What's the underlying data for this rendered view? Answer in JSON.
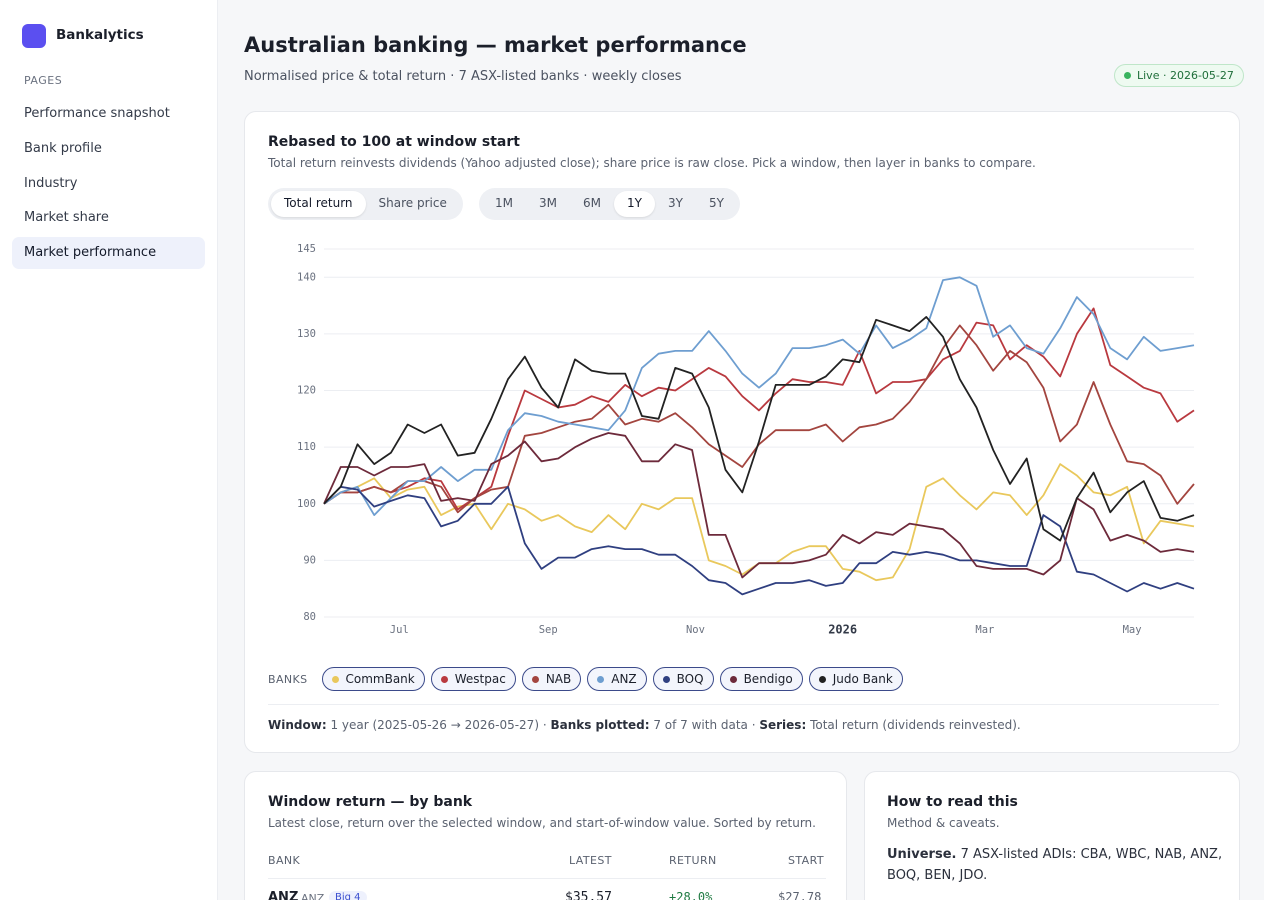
{
  "sidebar": {
    "brand": "Bankalytics",
    "section": "PAGES",
    "items": [
      "Performance snapshot",
      "Bank profile",
      "Industry",
      "Market share",
      "Market performance"
    ]
  },
  "header": {
    "title": "Australian banking — market performance",
    "subtitle": "Normalised price & total return · 7 ASX-listed banks · weekly closes",
    "badge": "Live · 2026-05-27"
  },
  "chart_card": {
    "title": "Rebased to 100 at window start",
    "subtitle": "Total return reinvests dividends (Yahoo adjusted close); share price is raw close. Pick a window, then layer in banks to compare.",
    "series_toggle": [
      "Total return",
      "Share price"
    ],
    "windows": [
      "1M",
      "3M",
      "6M",
      "1Y",
      "3Y",
      "5Y"
    ],
    "legend_label": "BANKS",
    "footer": [
      {
        "label": "Window:",
        "text": " 1 year (2025-05-26 → 2026-05-27) · "
      },
      {
        "label": "Banks plotted:",
        "text": " 7 of 7 with data · "
      },
      {
        "label": "Series:",
        "text": " Total return (dividends reinvested)."
      }
    ]
  },
  "chart_data": {
    "type": "line",
    "xlim": [
      0,
      52
    ],
    "xticks": [
      {
        "value": 4.5,
        "label": "Jul"
      },
      {
        "value": 13.4,
        "label": "Sep"
      },
      {
        "value": 22.2,
        "label": "Nov"
      },
      {
        "value": 31,
        "label": "2026"
      },
      {
        "value": 39.5,
        "label": "Mar"
      },
      {
        "value": 48.3,
        "label": "May"
      }
    ],
    "ylim": [
      80,
      145
    ],
    "yticks": [
      80,
      90,
      100,
      110,
      120,
      130,
      140,
      145
    ],
    "grid": true,
    "series": [
      {
        "name": "CommBank",
        "color": "#e9c85c",
        "values": [
          100,
          102,
          103,
          104.5,
          101,
          102.5,
          103,
          98,
          99.5,
          100,
          95.5,
          100,
          99,
          97,
          98,
          96,
          95,
          98,
          95.5,
          100,
          99,
          101,
          101,
          90,
          89,
          87.5,
          89.5,
          89.5,
          91.5,
          92.5,
          92.5,
          88.5,
          88,
          86.5,
          87,
          92,
          103,
          104.5,
          101.5,
          99,
          102,
          101.5,
          98,
          101.5,
          107,
          105,
          102,
          101.5,
          103,
          93,
          97,
          96.5,
          96
        ]
      },
      {
        "name": "Westpac",
        "color": "#b9393f",
        "values": [
          100,
          102,
          102,
          103,
          102,
          103,
          104.5,
          104,
          99,
          101,
          103,
          112,
          120,
          118.5,
          117,
          117.5,
          119,
          118,
          121,
          119,
          120.5,
          120,
          122,
          124,
          122.5,
          119,
          116.5,
          119.5,
          122,
          121.5,
          121.5,
          121,
          127,
          119.5,
          121.5,
          121.5,
          122,
          125.5,
          127,
          132,
          131.5,
          125.5,
          128,
          126,
          122.5,
          130,
          134.5,
          124.5,
          122.5,
          120.5,
          119.5,
          114.5,
          116.5
        ]
      },
      {
        "name": "NAB",
        "color": "#a3453f",
        "values": [
          100,
          102,
          102,
          103,
          102,
          104,
          104,
          103,
          98.5,
          101,
          102.5,
          103,
          112,
          112.5,
          113.5,
          114.5,
          115,
          117.5,
          114,
          115,
          114.5,
          116,
          113.5,
          110.5,
          108.5,
          106.5,
          110.5,
          113,
          113,
          113,
          114,
          111,
          113.5,
          114,
          115,
          118,
          122,
          127.5,
          131.5,
          128,
          123.5,
          127,
          125,
          120.5,
          111,
          114,
          121.5,
          114,
          107.5,
          107,
          105,
          100,
          103.5
        ]
      },
      {
        "name": "ANZ",
        "color": "#6e9ed0",
        "values": [
          100,
          102,
          103,
          98,
          101,
          104,
          104,
          106.5,
          104,
          106,
          106,
          113,
          116,
          115.5,
          114.5,
          114,
          113.5,
          113,
          116.5,
          124,
          126.5,
          127,
          127,
          130.5,
          127,
          123,
          120.5,
          123,
          127.5,
          127.5,
          128,
          129,
          126.5,
          131.5,
          127.5,
          129,
          131,
          139.5,
          140,
          138.5,
          129.5,
          131.5,
          127.5,
          126.5,
          131,
          136.5,
          133.5,
          127.5,
          125.5,
          129.5,
          127,
          127.5,
          128
        ]
      },
      {
        "name": "BOQ",
        "color": "#2f3f80",
        "values": [
          100,
          103,
          102.5,
          99.5,
          100.5,
          101.5,
          101,
          96,
          97,
          100,
          100,
          103,
          93,
          88.5,
          90.5,
          90.5,
          92,
          92.5,
          92,
          92,
          91,
          91,
          89,
          86.5,
          86,
          84,
          85,
          86,
          86,
          86.5,
          85.5,
          86,
          89.5,
          89.5,
          91.5,
          91,
          91.5,
          91,
          90,
          90,
          89.5,
          89,
          89,
          98,
          96,
          88,
          87.5,
          86,
          84.5,
          86,
          85,
          86,
          85
        ]
      },
      {
        "name": "Bendigo",
        "color": "#6d2a3b",
        "values": [
          100,
          106.5,
          106.5,
          105,
          106.5,
          106.5,
          107,
          100.5,
          101,
          100.5,
          107,
          108.5,
          111,
          107.5,
          108,
          110,
          111.5,
          112.5,
          112,
          107.5,
          107.5,
          110.5,
          109.5,
          94.5,
          94.5,
          87,
          89.5,
          89.5,
          89.5,
          90,
          91,
          94.5,
          93,
          95,
          94.5,
          96.5,
          96,
          95.5,
          93,
          89,
          88.5,
          88.5,
          88.5,
          87.5,
          90,
          101,
          99,
          93.5,
          94.5,
          93.5,
          91.5,
          92,
          91.5
        ]
      },
      {
        "name": "Judo Bank",
        "color": "#222222",
        "values": [
          100,
          103,
          110.5,
          107,
          109,
          114,
          112.5,
          114,
          108.5,
          109,
          115,
          122,
          126,
          120.5,
          117,
          125.5,
          123.5,
          123,
          123,
          115.5,
          115,
          124,
          123,
          117,
          106,
          102,
          111,
          121,
          121,
          121,
          122.5,
          125.5,
          125,
          132.5,
          131.5,
          130.5,
          133,
          129.5,
          122,
          117,
          109.5,
          103.5,
          108,
          95.5,
          93.5,
          101,
          105.5,
          98.5,
          102,
          104,
          97.5,
          97,
          98
        ]
      }
    ]
  },
  "table_card": {
    "title": "Window return — by bank",
    "subtitle": "Latest close, return over the selected window, and start-of-window value. Sorted by return.",
    "columns": [
      "BANK",
      "LATEST",
      "RETURN",
      "START"
    ],
    "rows": [
      [
        "ANZ",
        "ANZ",
        "Big 4",
        "$35.57",
        "+28.0%",
        "$27.78"
      ]
    ]
  },
  "notes_card": {
    "title": "How to read this",
    "subtitle": "Method & caveats.",
    "universe_label": "Universe.",
    "universe_text": " 7 ASX-listed ADIs: CBA, WBC, NAB, ANZ, BOQ, BEN, JDO."
  }
}
